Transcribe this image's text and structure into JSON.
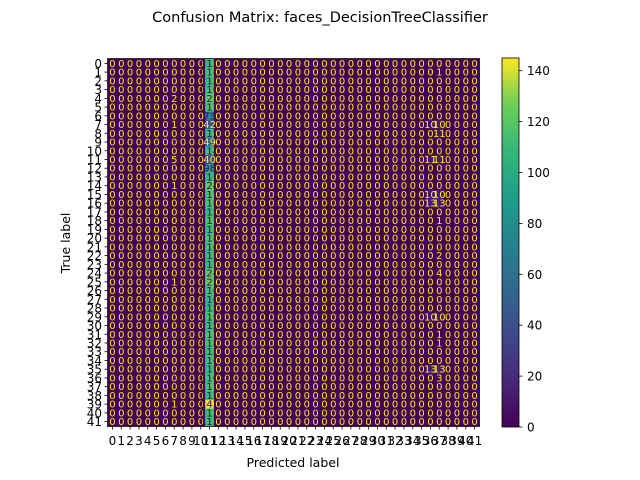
{
  "chart_data": {
    "type": "heatmap",
    "title": "Confusion Matrix: faces_DecisionTreeClassifier",
    "xlabel": "Predicted label",
    "ylabel": "True label",
    "n_classes": 42,
    "class_labels": [
      "0",
      "1",
      "2",
      "3",
      "4",
      "5",
      "6",
      "7",
      "8",
      "9",
      "10",
      "11",
      "12",
      "13",
      "14",
      "15",
      "16",
      "17",
      "18",
      "19",
      "20",
      "21",
      "22",
      "23",
      "24",
      "25",
      "26",
      "27",
      "28",
      "29",
      "30",
      "31",
      "32",
      "33",
      "34",
      "35",
      "36",
      "37",
      "38",
      "39",
      "40",
      "41"
    ],
    "colormap": "viridis",
    "color_range": [
      0,
      145
    ],
    "colorbar_ticks": [
      0,
      20,
      40,
      60,
      80,
      100,
      120,
      140
    ],
    "row_values": [
      {
        "row": 0,
        "col": 11,
        "value": 112
      },
      {
        "row": 1,
        "col": 11,
        "value": 118
      },
      {
        "row": 1,
        "col": 37,
        "value": 1
      },
      {
        "row": 2,
        "col": 11,
        "value": 113
      },
      {
        "row": 3,
        "col": 11,
        "value": 116
      },
      {
        "row": 4,
        "col": 7,
        "value": 2
      },
      {
        "row": 4,
        "col": 11,
        "value": 122
      },
      {
        "row": 5,
        "col": 11,
        "value": 117
      },
      {
        "row": 6,
        "col": 11,
        "value": 73
      },
      {
        "row": 7,
        "col": 7,
        "value": 1
      },
      {
        "row": 7,
        "col": 11,
        "value": 42
      },
      {
        "row": 7,
        "col": 36,
        "value": 10
      },
      {
        "row": 7,
        "col": 37,
        "value": 10
      },
      {
        "row": 8,
        "col": 11,
        "value": 112
      },
      {
        "row": 8,
        "col": 37,
        "value": 11
      },
      {
        "row": 9,
        "col": 11,
        "value": 49
      },
      {
        "row": 10,
        "col": 11,
        "value": 114
      },
      {
        "row": 11,
        "col": 7,
        "value": 5
      },
      {
        "row": 11,
        "col": 11,
        "value": 40
      },
      {
        "row": 11,
        "col": 36,
        "value": 11
      },
      {
        "row": 11,
        "col": 37,
        "value": 11
      },
      {
        "row": 12,
        "col": 11,
        "value": 98
      },
      {
        "row": 13,
        "col": 11,
        "value": 111
      },
      {
        "row": 14,
        "col": 7,
        "value": 1
      },
      {
        "row": 14,
        "col": 11,
        "value": 124
      },
      {
        "row": 15,
        "col": 11,
        "value": 117
      },
      {
        "row": 15,
        "col": 36,
        "value": 10
      },
      {
        "row": 15,
        "col": 37,
        "value": 10
      },
      {
        "row": 16,
        "col": 11,
        "value": 118
      },
      {
        "row": 16,
        "col": 36,
        "value": 13
      },
      {
        "row": 16,
        "col": 37,
        "value": 13
      },
      {
        "row": 17,
        "col": 11,
        "value": 112
      },
      {
        "row": 18,
        "col": 11,
        "value": 117
      },
      {
        "row": 18,
        "col": 37,
        "value": 1
      },
      {
        "row": 19,
        "col": 11,
        "value": 113
      },
      {
        "row": 20,
        "col": 11,
        "value": 118
      },
      {
        "row": 21,
        "col": 11,
        "value": 116
      },
      {
        "row": 22,
        "col": 11,
        "value": 113
      },
      {
        "row": 22,
        "col": 37,
        "value": 2
      },
      {
        "row": 23,
        "col": 11,
        "value": 111
      },
      {
        "row": 24,
        "col": 11,
        "value": 124
      },
      {
        "row": 24,
        "col": 37,
        "value": 4
      },
      {
        "row": 25,
        "col": 7,
        "value": 1
      },
      {
        "row": 25,
        "col": 11,
        "value": 123
      },
      {
        "row": 26,
        "col": 11,
        "value": 116
      },
      {
        "row": 27,
        "col": 11,
        "value": 110
      },
      {
        "row": 28,
        "col": 11,
        "value": 112
      },
      {
        "row": 29,
        "col": 11,
        "value": 119
      },
      {
        "row": 29,
        "col": 36,
        "value": 10
      },
      {
        "row": 29,
        "col": 37,
        "value": 10
      },
      {
        "row": 30,
        "col": 11,
        "value": 112
      },
      {
        "row": 31,
        "col": 11,
        "value": 117
      },
      {
        "row": 31,
        "col": 37,
        "value": 1
      },
      {
        "row": 32,
        "col": 11,
        "value": 118
      },
      {
        "row": 32,
        "col": 37,
        "value": 1
      },
      {
        "row": 33,
        "col": 11,
        "value": 113
      },
      {
        "row": 34,
        "col": 11,
        "value": 114
      },
      {
        "row": 35,
        "col": 11,
        "value": 111
      },
      {
        "row": 35,
        "col": 36,
        "value": 13
      },
      {
        "row": 35,
        "col": 37,
        "value": 13
      },
      {
        "row": 36,
        "col": 11,
        "value": 116
      },
      {
        "row": 36,
        "col": 37,
        "value": 3
      },
      {
        "row": 37,
        "col": 11,
        "value": 117
      },
      {
        "row": 38,
        "col": 11,
        "value": 112
      },
      {
        "row": 39,
        "col": 7,
        "value": 1
      },
      {
        "row": 39,
        "col": 11,
        "value": 142
      },
      {
        "row": 40,
        "col": 11,
        "value": 113
      },
      {
        "row": 41,
        "col": 11,
        "value": 113
      }
    ]
  }
}
